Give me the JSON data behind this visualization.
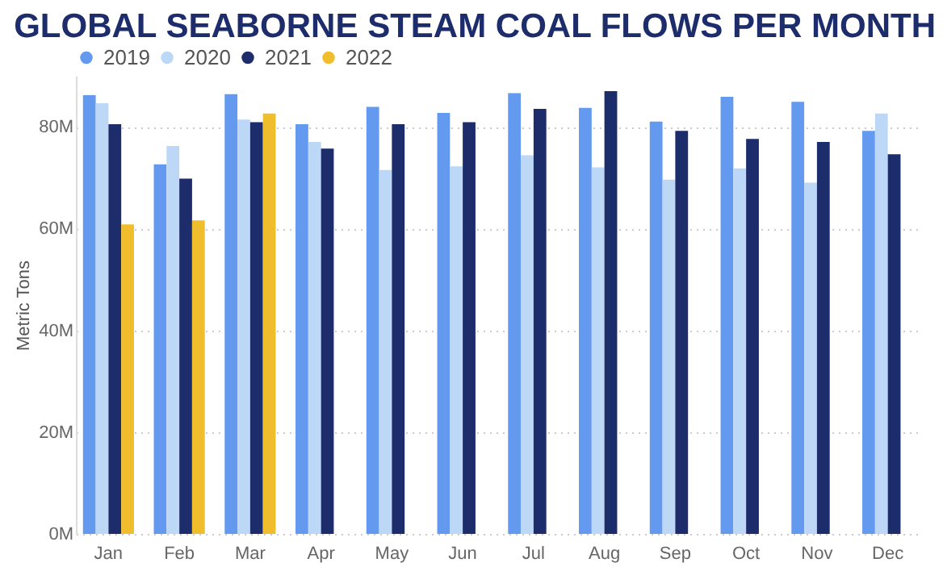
{
  "chart_data": {
    "type": "bar",
    "title": "GLOBAL SEABORNE STEAM COAL FLOWS PER MONTH",
    "ylabel": "Metric Tons",
    "categories": [
      "Jan",
      "Feb",
      "Mar",
      "Apr",
      "May",
      "Jun",
      "Jul",
      "Aug",
      "Sep",
      "Oct",
      "Nov",
      "Dec"
    ],
    "series": [
      {
        "name": "2019",
        "color": "#6399ef",
        "values": [
          86.2,
          72.6,
          86.4,
          80.5,
          83.9,
          82.7,
          86.6,
          83.7,
          81.0,
          85.9,
          84.9,
          79.2
        ]
      },
      {
        "name": "2020",
        "color": "#bdd7f7",
        "values": [
          84.6,
          76.2,
          81.4,
          77.0,
          71.5,
          72.2,
          74.4,
          72.0,
          69.6,
          71.8,
          69.0,
          82.6
        ]
      },
      {
        "name": "2021",
        "color": "#1d2c6b",
        "values": [
          80.5,
          69.8,
          80.9,
          75.7,
          80.5,
          80.9,
          83.5,
          87.0,
          79.2,
          77.6,
          77.0,
          74.6
        ]
      },
      {
        "name": "2022",
        "color": "#f0be2c",
        "values": [
          60.8,
          61.6,
          82.6,
          null,
          null,
          null,
          null,
          null,
          null,
          null,
          null,
          null
        ]
      }
    ],
    "ylim": [
      0,
      90
    ],
    "yticks": [
      {
        "value": 0,
        "label": "0M"
      },
      {
        "value": 20,
        "label": "20M"
      },
      {
        "value": 40,
        "label": "40M"
      },
      {
        "value": 60,
        "label": "60M"
      },
      {
        "value": 80,
        "label": "80M"
      }
    ],
    "grid": "y",
    "legend": "top"
  }
}
